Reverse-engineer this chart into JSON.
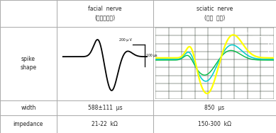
{
  "title_col1": "facial  nerve\n(본연구결과)",
  "title_col2": "sciatic  nerve\n(다른  보고)",
  "width_col1": "588±111  μs",
  "width_col2": "850  μs",
  "impedance_col1": "21-22  kΩ",
  "impedance_col2": "150-300  kΩ",
  "bg_color_sciatic": "#152015",
  "grid_color_sciatic": "#253525",
  "line_color_yellow": "#ffff00",
  "line_color_cyan": "#00cccc",
  "line_color_green": "#00bb44",
  "table_border_color": "#aaaaaa",
  "text_color": "#222222",
  "col_bounds": [
    0.0,
    0.205,
    0.555,
    1.0
  ],
  "row_bounds": [
    0.0,
    0.215,
    0.735,
    0.855,
    1.0
  ]
}
